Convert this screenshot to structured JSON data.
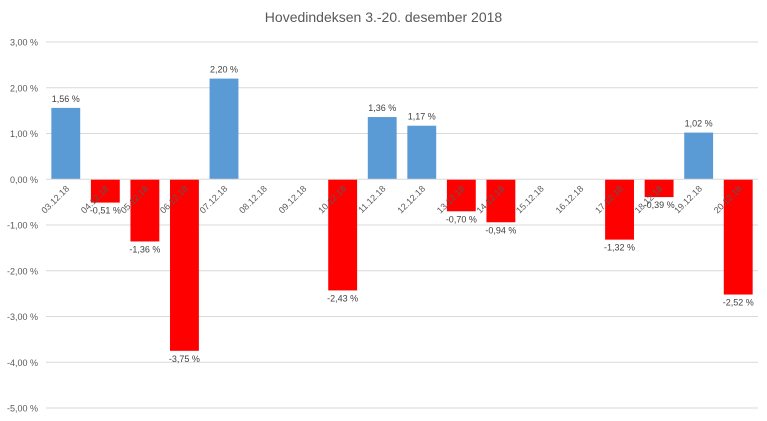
{
  "chart_data": {
    "type": "bar",
    "title": "Hovedindeksen 3.-20. desember 2018",
    "xlabel": "",
    "ylabel": "",
    "ylim": [
      -5,
      3
    ],
    "y_ticks": [
      3,
      2,
      1,
      0,
      -1,
      -2,
      -3,
      -4,
      -5
    ],
    "y_tick_labels": [
      "3,00 %",
      "2,00 %",
      "1,00 %",
      "0,00 %",
      "-1,00 %",
      "-2,00 %",
      "-3,00 %",
      "-4,00 %",
      "-5,00 %"
    ],
    "grid": true,
    "legend": "none",
    "colors": {
      "positive": "#5b9bd5",
      "negative": "#ff0000",
      "grid": "#d9d9d9",
      "text": "#595959"
    },
    "categories": [
      "03.12.18",
      "04.12.18",
      "05.12.18",
      "06.12.18",
      "07.12.18",
      "08.12.18",
      "09.12.18",
      "10.12.18",
      "11.12.18",
      "12.12.18",
      "13.12.18",
      "14.12.18",
      "15.12.18",
      "16.12.18",
      "17.12.18",
      "18.12.18",
      "19.12.18",
      "20.12.18"
    ],
    "values": [
      1.56,
      -0.51,
      -1.36,
      -3.75,
      2.2,
      null,
      null,
      -2.43,
      1.36,
      1.17,
      -0.7,
      -0.94,
      null,
      null,
      -1.32,
      -0.39,
      1.02,
      -2.52
    ],
    "data_labels": [
      "1,56 %",
      "-0,51 %",
      "-1,36 %",
      "-3,75 %",
      "2,20 %",
      "",
      "",
      "-2,43 %",
      "1,36 %",
      "1,17 %",
      "-0,70 %",
      "-0,94 %",
      "",
      "",
      "-1,32 %",
      "-0,39 %",
      "1,02 %",
      "-2,52 %"
    ]
  }
}
